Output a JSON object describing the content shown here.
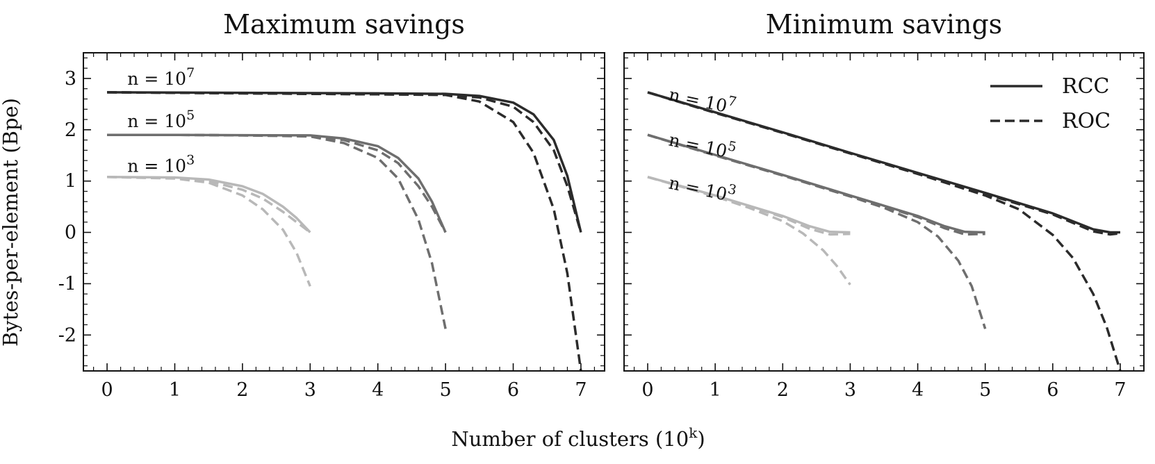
{
  "figure": {
    "xlabel": "Number of clusters (10",
    "xlabel_sup": "k",
    "xlabel_tail": ")",
    "ylabel": "Bytes-per-element (Bpe)"
  },
  "legend": [
    {
      "label": "RCC",
      "style": "solid"
    },
    {
      "label": "ROC",
      "style": "dashed"
    }
  ],
  "colors": {
    "n7": "#2b2b2b",
    "n5": "#6e6e6e",
    "n3": "#b8b8b8"
  },
  "chart_data": [
    {
      "type": "line",
      "title": "Maximum savings",
      "xlim": [
        -0.35,
        7.35
      ],
      "ylim": [
        -2.7,
        3.5
      ],
      "xticks": [
        0,
        1,
        2,
        3,
        4,
        5,
        6,
        7
      ],
      "yticks": [
        3,
        2,
        1,
        0,
        -1,
        -2
      ],
      "ytick_labels": [
        "3",
        "2",
        "1",
        "0",
        "-1",
        "-2"
      ],
      "annotations": [
        {
          "base": "n = 10",
          "exp": "7",
          "x": 0.3,
          "y": 2.88,
          "rotate": 0
        },
        {
          "base": "n = 10",
          "exp": "5",
          "x": 0.3,
          "y": 2.05,
          "rotate": 0
        },
        {
          "base": "n = 10",
          "exp": "3",
          "x": 0.3,
          "y": 1.18,
          "rotate": 0
        }
      ],
      "series": [
        {
          "group": "n7",
          "style": "solid",
          "x": [
            0,
            1,
            2,
            3,
            4,
            5,
            5.5,
            6,
            6.3,
            6.6,
            6.8,
            7
          ],
          "y": [
            2.73,
            2.725,
            2.72,
            2.715,
            2.71,
            2.7,
            2.66,
            2.53,
            2.3,
            1.8,
            1.1,
            0
          ]
        },
        {
          "group": "n7",
          "style": "dashed",
          "x": [
            0,
            1,
            2,
            3,
            4,
            5,
            5.5,
            6,
            6.3,
            6.6,
            6.8,
            7
          ],
          "y": [
            2.73,
            2.72,
            2.71,
            2.7,
            2.69,
            2.68,
            2.63,
            2.45,
            2.15,
            1.6,
            0.9,
            0
          ]
        },
        {
          "group": "n7",
          "style": "dashed",
          "x": [
            0,
            1,
            2,
            3,
            4,
            5,
            5.5,
            6,
            6.3,
            6.6,
            6.8,
            7
          ],
          "y": [
            2.73,
            2.72,
            2.71,
            2.7,
            2.69,
            2.68,
            2.55,
            2.15,
            1.55,
            0.45,
            -0.8,
            -2.7
          ]
        },
        {
          "group": "n5",
          "style": "solid",
          "x": [
            0,
            1,
            2,
            3,
            3.5,
            4,
            4.3,
            4.6,
            4.8,
            5
          ],
          "y": [
            1.9,
            1.9,
            1.895,
            1.89,
            1.83,
            1.68,
            1.45,
            1.05,
            0.6,
            0
          ]
        },
        {
          "group": "n5",
          "style": "dashed",
          "x": [
            0,
            1,
            2,
            3,
            3.5,
            4,
            4.3,
            4.6,
            4.8,
            5
          ],
          "y": [
            1.9,
            1.9,
            1.89,
            1.88,
            1.8,
            1.6,
            1.35,
            0.9,
            0.5,
            0
          ]
        },
        {
          "group": "n5",
          "style": "dashed",
          "x": [
            0,
            1,
            2,
            3,
            3.5,
            4,
            4.3,
            4.6,
            4.8,
            5
          ],
          "y": [
            1.9,
            1.9,
            1.89,
            1.87,
            1.74,
            1.45,
            1.05,
            0.25,
            -0.6,
            -1.88
          ]
        },
        {
          "group": "n3",
          "style": "solid",
          "x": [
            0,
            1,
            1.5,
            2,
            2.3,
            2.6,
            2.8,
            3
          ],
          "y": [
            1.08,
            1.07,
            1.03,
            0.9,
            0.75,
            0.5,
            0.28,
            0
          ]
        },
        {
          "group": "n3",
          "style": "dashed",
          "x": [
            0,
            1,
            1.5,
            2,
            2.3,
            2.6,
            2.8,
            3
          ],
          "y": [
            1.08,
            1.06,
            1.0,
            0.83,
            0.66,
            0.4,
            0.2,
            0
          ]
        },
        {
          "group": "n3",
          "style": "dashed",
          "x": [
            0,
            1,
            1.5,
            2,
            2.3,
            2.6,
            2.8,
            3
          ],
          "y": [
            1.08,
            1.05,
            0.97,
            0.72,
            0.45,
            0.05,
            -0.4,
            -1.05
          ]
        }
      ]
    },
    {
      "type": "line",
      "title": "Minimum savings",
      "xlim": [
        -0.35,
        7.35
      ],
      "ylim": [
        -2.7,
        3.5
      ],
      "xticks": [
        0,
        1,
        2,
        3,
        4,
        5,
        6,
        7
      ],
      "yticks": [
        3,
        2,
        1,
        0,
        -1,
        -2
      ],
      "ytick_labels": [],
      "annotations": [
        {
          "base": "n = 10",
          "exp": "7",
          "x": 0.3,
          "y": 2.58,
          "rotate": 12
        },
        {
          "base": "n = 10",
          "exp": "5",
          "x": 0.3,
          "y": 1.7,
          "rotate": 12
        },
        {
          "base": "n = 10",
          "exp": "3",
          "x": 0.3,
          "y": 0.86,
          "rotate": 12
        }
      ],
      "series": [
        {
          "group": "n7",
          "style": "solid",
          "x": [
            0,
            1,
            2,
            3,
            4,
            5,
            6,
            6.6,
            6.85,
            7
          ],
          "y": [
            2.73,
            2.34,
            1.95,
            1.55,
            1.16,
            0.77,
            0.37,
            0.06,
            0.0,
            0.0
          ]
        },
        {
          "group": "n7",
          "style": "dashed",
          "x": [
            0,
            1,
            2,
            3,
            4,
            5,
            6,
            6.6,
            6.85,
            7
          ],
          "y": [
            2.73,
            2.33,
            1.94,
            1.54,
            1.14,
            0.75,
            0.35,
            0.02,
            -0.04,
            -0.02
          ]
        },
        {
          "group": "n7",
          "style": "dashed",
          "x": [
            0,
            1,
            2,
            3,
            4,
            5,
            5.5,
            6,
            6.3,
            6.6,
            6.8,
            7
          ],
          "y": [
            2.73,
            2.33,
            1.94,
            1.54,
            1.14,
            0.72,
            0.45,
            -0.05,
            -0.5,
            -1.2,
            -1.85,
            -2.7
          ]
        },
        {
          "group": "n5",
          "style": "solid",
          "x": [
            0,
            1,
            2,
            3,
            4,
            4.4,
            4.7,
            5
          ],
          "y": [
            1.9,
            1.51,
            1.12,
            0.72,
            0.32,
            0.12,
            0.01,
            0.0
          ]
        },
        {
          "group": "n5",
          "style": "dashed",
          "x": [
            0,
            1,
            2,
            3,
            4,
            4.4,
            4.7,
            5
          ],
          "y": [
            1.9,
            1.5,
            1.11,
            0.71,
            0.3,
            0.08,
            -0.04,
            -0.03
          ]
        },
        {
          "group": "n5",
          "style": "dashed",
          "x": [
            0,
            1,
            2,
            3,
            3.5,
            4,
            4.3,
            4.6,
            4.8,
            5
          ],
          "y": [
            1.9,
            1.5,
            1.11,
            0.7,
            0.48,
            0.2,
            -0.08,
            -0.55,
            -1.05,
            -1.88
          ]
        },
        {
          "group": "n3",
          "style": "solid",
          "x": [
            0,
            1,
            2,
            2.4,
            2.7,
            3
          ],
          "y": [
            1.08,
            0.72,
            0.32,
            0.12,
            0.01,
            0.0
          ]
        },
        {
          "group": "n3",
          "style": "dashed",
          "x": [
            0,
            1,
            2,
            2.4,
            2.7,
            3
          ],
          "y": [
            1.08,
            0.71,
            0.3,
            0.07,
            -0.04,
            -0.03
          ]
        },
        {
          "group": "n3",
          "style": "dashed",
          "x": [
            0,
            1,
            1.5,
            2,
            2.3,
            2.6,
            2.8,
            3
          ],
          "y": [
            1.08,
            0.7,
            0.48,
            0.22,
            -0.02,
            -0.35,
            -0.65,
            -1.02
          ]
        }
      ]
    }
  ]
}
